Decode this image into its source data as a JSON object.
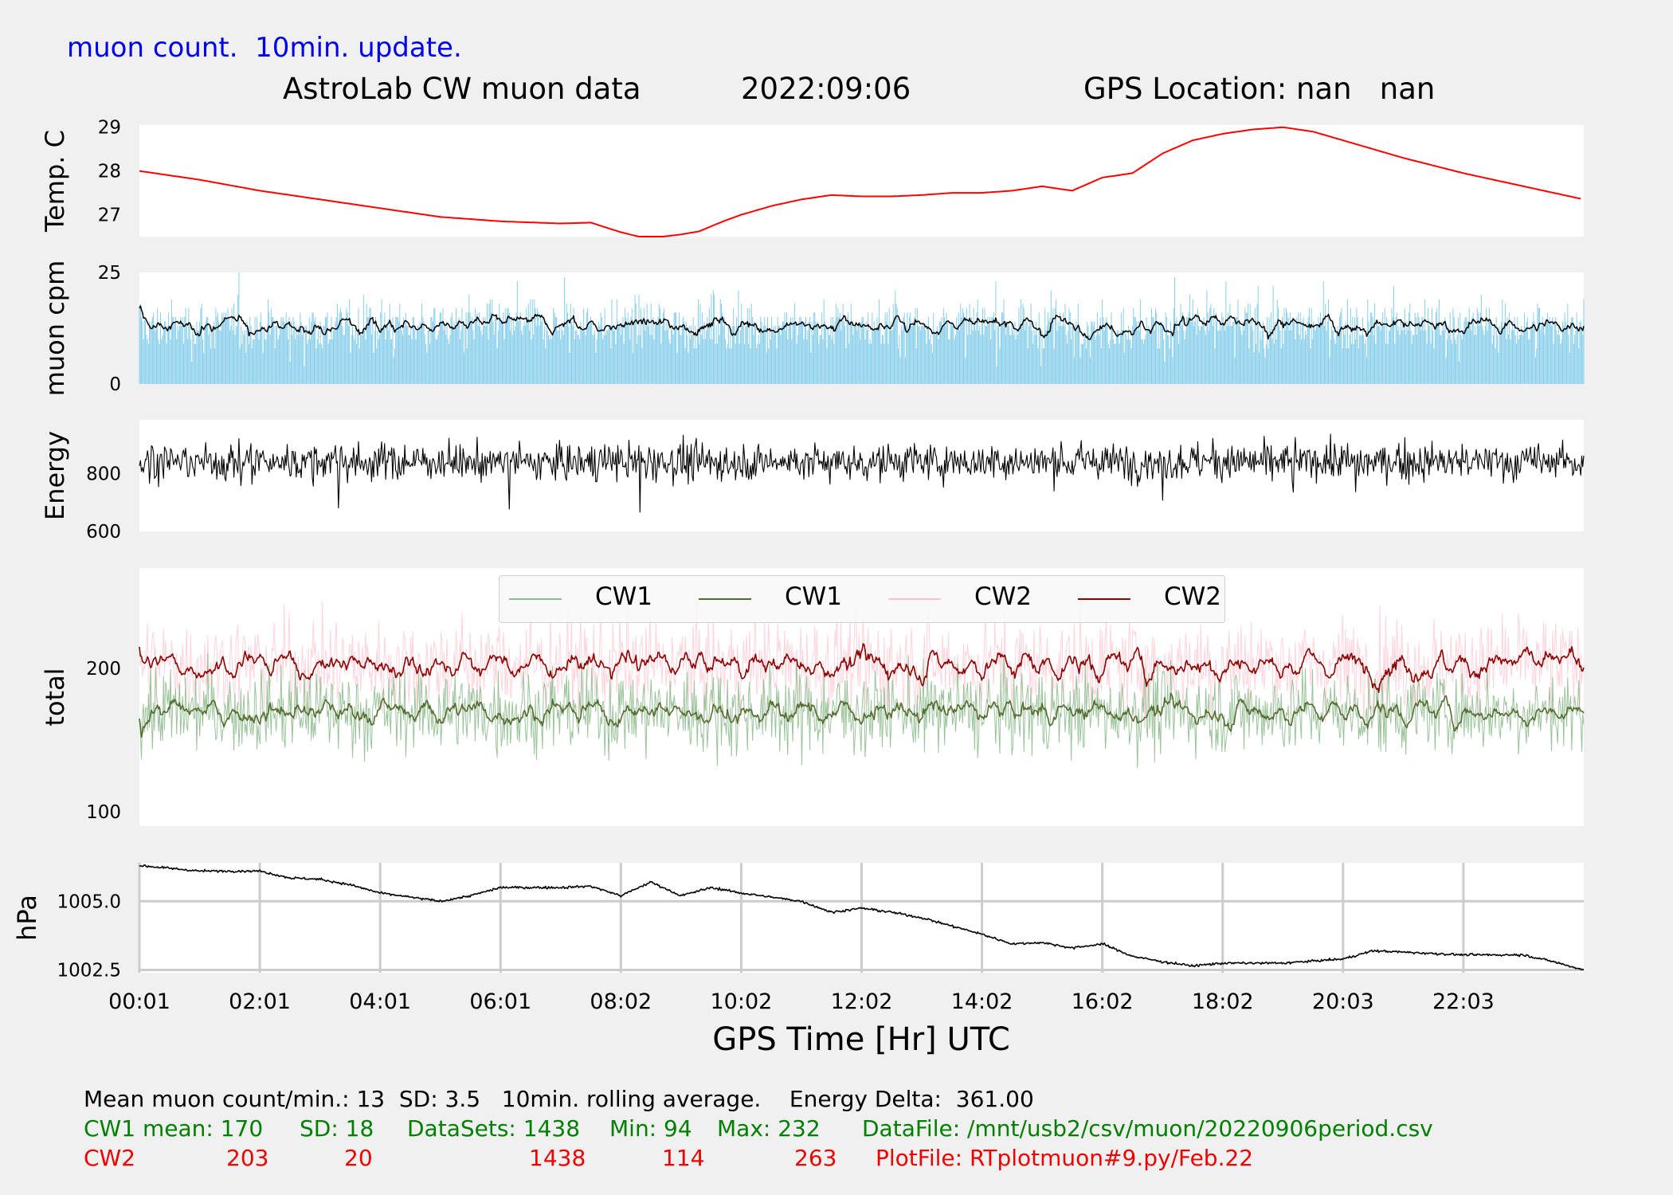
{
  "header": {
    "update_note": "muon count.  10min. update.",
    "title": "AstroLab CW muon data",
    "date": "2022:09:06",
    "gps_location": "GPS Location: nan   nan"
  },
  "chart_data": [
    {
      "type": "line",
      "panel": "temperature",
      "ylabel": "Temp. C",
      "yticks": [
        27,
        28,
        29
      ],
      "ylim": [
        26.5,
        29.05
      ],
      "series": [
        {
          "color": "#ff0000",
          "x": [
            0,
            1,
            2,
            3,
            4,
            5,
            6,
            7,
            7.5,
            8,
            8.3,
            8.7,
            9,
            9.3,
            9.7,
            10,
            10.5,
            11,
            11.5,
            12,
            12.5,
            13,
            13.5,
            14,
            14.5,
            15,
            15.5,
            16,
            16.5,
            17,
            17.5,
            18,
            18.5,
            19,
            19.5,
            20,
            21,
            22,
            23,
            24
          ],
          "y": [
            28.0,
            27.8,
            27.55,
            27.35,
            27.15,
            26.95,
            26.85,
            26.8,
            26.82,
            26.6,
            26.5,
            26.5,
            26.55,
            26.62,
            26.85,
            27.0,
            27.2,
            27.35,
            27.45,
            27.42,
            27.42,
            27.45,
            27.5,
            27.5,
            27.55,
            27.65,
            27.55,
            27.85,
            27.95,
            28.4,
            28.7,
            28.85,
            28.95,
            29.0,
            28.9,
            28.7,
            28.3,
            27.95,
            27.65,
            27.35
          ]
        }
      ]
    },
    {
      "type": "bar",
      "panel": "muon_cpm",
      "ylabel": "muon cpm",
      "yticks": [
        0,
        25
      ],
      "ylim": [
        0,
        25
      ],
      "bar_color": "#87ceeb",
      "line_color": "#000000",
      "mean": 13,
      "sd": 3.5,
      "rolling_window_min": 10
    },
    {
      "type": "line",
      "panel": "energy",
      "ylabel": "Energy",
      "yticks": [
        600,
        800
      ],
      "ylim": [
        600,
        985
      ],
      "line_color": "#000000",
      "approx_mean": 840,
      "approx_min": 612,
      "approx_max": 975
    },
    {
      "type": "line",
      "panel": "total",
      "ylabel": "total",
      "yticks": [
        100,
        200
      ],
      "ylim": [
        90,
        270
      ],
      "series": [
        {
          "name": "CW1",
          "style": "raw",
          "color": "#8fbc8f",
          "mean": 170,
          "sd": 18,
          "min": 94,
          "max": 232
        },
        {
          "name": "CW1",
          "style": "rolling",
          "color": "#556b2f",
          "mean": 170
        },
        {
          "name": "CW2",
          "style": "raw",
          "color": "#ffc0cb",
          "mean": 203,
          "sd": 20,
          "min": 114,
          "max": 263
        },
        {
          "name": "CW2",
          "style": "rolling",
          "color": "#8b0000",
          "mean": 203
        }
      ]
    },
    {
      "type": "line",
      "panel": "pressure",
      "ylabel": "hPa",
      "yticks": [
        "1002.5",
        "1005.0"
      ],
      "ylim": [
        1002.4,
        1006.4
      ],
      "grid": true,
      "series": [
        {
          "color": "#000000",
          "x": [
            0,
            1,
            2,
            2.5,
            3,
            3.5,
            4,
            5,
            5.5,
            6,
            7,
            7.5,
            8,
            8.5,
            9,
            9.5,
            10,
            11,
            11.5,
            12,
            12.5,
            13,
            14,
            14.5,
            15,
            15.5,
            16,
            16.5,
            17,
            17.5,
            18,
            19,
            20,
            20.5,
            21,
            22,
            23,
            23.5,
            24
          ],
          "y": [
            1006.3,
            1006.1,
            1006.1,
            1005.85,
            1005.8,
            1005.6,
            1005.3,
            1005.0,
            1005.2,
            1005.5,
            1005.5,
            1005.55,
            1005.2,
            1005.7,
            1005.2,
            1005.5,
            1005.3,
            1005.0,
            1004.6,
            1004.75,
            1004.6,
            1004.4,
            1003.8,
            1003.45,
            1003.5,
            1003.3,
            1003.45,
            1003.0,
            1002.8,
            1002.65,
            1002.75,
            1002.75,
            1002.9,
            1003.2,
            1003.15,
            1003.05,
            1003.05,
            1002.8,
            1002.5
          ]
        }
      ]
    }
  ],
  "x_axis": {
    "ticks": [
      "00:01",
      "02:01",
      "04:01",
      "06:01",
      "08:02",
      "10:02",
      "12:02",
      "14:02",
      "16:02",
      "18:02",
      "20:03",
      "22:03"
    ],
    "tick_values_hr": [
      0,
      2,
      4,
      6,
      8,
      10,
      12,
      14,
      16,
      18,
      20,
      22
    ],
    "range_hr": [
      0,
      24
    ],
    "label": "GPS Time  [Hr] UTC"
  },
  "legend": {
    "placement": "top-center",
    "entries": [
      {
        "label": "CW1",
        "color": "#8fbc8f",
        "style": "raw"
      },
      {
        "label": "CW1",
        "color": "#556b2f",
        "style": "rolling"
      },
      {
        "label": "CW2",
        "color": "#ffc0cb",
        "style": "raw"
      },
      {
        "label": "CW2",
        "color": "#8b0000",
        "style": "rolling"
      }
    ]
  },
  "footer": {
    "line1": "Mean muon count/min.: 13  SD: 3.5   10min. rolling average.    Energy Delta:  361.00",
    "cw1": {
      "label": "CW1 mean: 170",
      "sd": "SD: 18",
      "datasets": "DataSets: 1438",
      "min": "Min: 94",
      "max": "Max: 232",
      "file": "DataFile: /mnt/usb2/csv/muon/20220906period.csv"
    },
    "cw2": {
      "label": "CW2",
      "mean": "203",
      "sd": "20",
      "datasets": "1438",
      "min": "114",
      "max": "263",
      "file": "PlotFile: RTplotmuon#9.py/Feb.22"
    }
  }
}
